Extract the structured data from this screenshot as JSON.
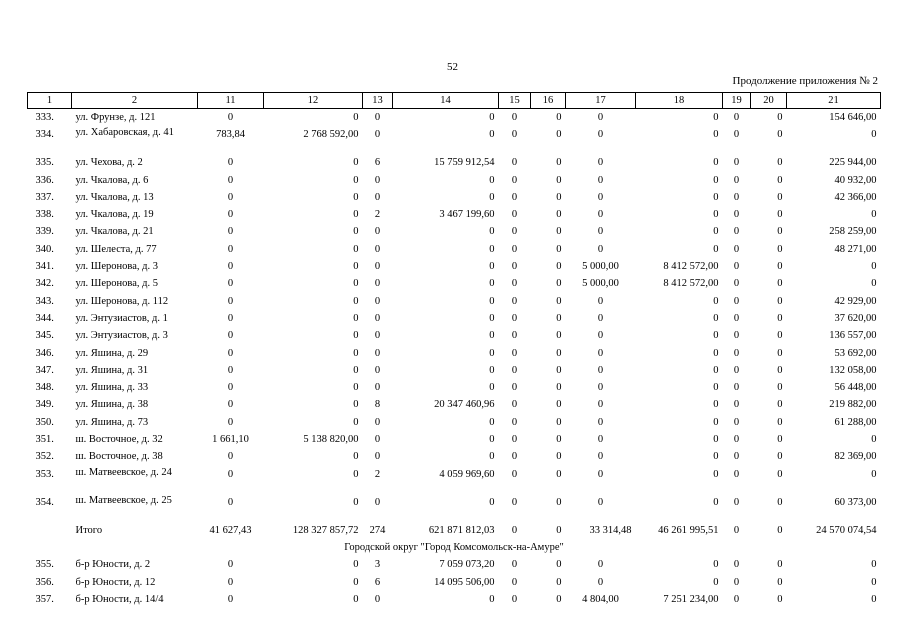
{
  "page_number": "52",
  "caption": "Продолжение приложения № 2",
  "headers": [
    "1",
    "2",
    "11",
    "12",
    "13",
    "14",
    "15",
    "16",
    "17",
    "18",
    "19",
    "20",
    "21"
  ],
  "rows_top": [
    {
      "num": "333.",
      "addr": "ул. Фрунзе, д. 121",
      "c11": "0",
      "c12": "0",
      "c13": "0",
      "c14": "0",
      "c15": "0",
      "c16": "0",
      "c17": "0",
      "c18": "0",
      "c19": "0",
      "c20": "0",
      "c21": "154 646,00"
    },
    {
      "num": "334.",
      "addr": "ул. Хабаровская, д. 41",
      "c11": "783,84",
      "c12": "2 768 592,00",
      "c13": "0",
      "c14": "0",
      "c15": "0",
      "c16": "0",
      "c17": "0",
      "c18": "0",
      "c19": "0",
      "c20": "0",
      "c21": "0",
      "tall": true
    },
    {
      "num": "335.",
      "addr": "ул. Чехова, д. 2",
      "c11": "0",
      "c12": "0",
      "c13": "6",
      "c14": "15 759 912,54",
      "c15": "0",
      "c16": "0",
      "c17": "0",
      "c18": "0",
      "c19": "0",
      "c20": "0",
      "c21": "225 944,00"
    },
    {
      "num": "336.",
      "addr": "ул. Чкалова, д. 6",
      "c11": "0",
      "c12": "0",
      "c13": "0",
      "c14": "0",
      "c15": "0",
      "c16": "0",
      "c17": "0",
      "c18": "0",
      "c19": "0",
      "c20": "0",
      "c21": "40 932,00"
    },
    {
      "num": "337.",
      "addr": "ул. Чкалова, д. 13",
      "c11": "0",
      "c12": "0",
      "c13": "0",
      "c14": "0",
      "c15": "0",
      "c16": "0",
      "c17": "0",
      "c18": "0",
      "c19": "0",
      "c20": "0",
      "c21": "42 366,00"
    },
    {
      "num": "338.",
      "addr": "ул. Чкалова, д. 19",
      "c11": "0",
      "c12": "0",
      "c13": "2",
      "c14": "3 467 199,60",
      "c15": "0",
      "c16": "0",
      "c17": "0",
      "c18": "0",
      "c19": "0",
      "c20": "0",
      "c21": "0"
    },
    {
      "num": "339.",
      "addr": "ул. Чкалова, д. 21",
      "c11": "0",
      "c12": "0",
      "c13": "0",
      "c14": "0",
      "c15": "0",
      "c16": "0",
      "c17": "0",
      "c18": "0",
      "c19": "0",
      "c20": "0",
      "c21": "258 259,00"
    },
    {
      "num": "340.",
      "addr": "ул. Шелеста, д. 77",
      "c11": "0",
      "c12": "0",
      "c13": "0",
      "c14": "0",
      "c15": "0",
      "c16": "0",
      "c17": "0",
      "c18": "0",
      "c19": "0",
      "c20": "0",
      "c21": "48 271,00"
    },
    {
      "num": "341.",
      "addr": "ул. Шеронова, д. 3",
      "c11": "0",
      "c12": "0",
      "c13": "0",
      "c14": "0",
      "c15": "0",
      "c16": "0",
      "c17": "5 000,00",
      "c18": "8 412 572,00",
      "c19": "0",
      "c20": "0",
      "c21": "0"
    },
    {
      "num": "342.",
      "addr": "ул. Шеронова, д. 5",
      "c11": "0",
      "c12": "0",
      "c13": "0",
      "c14": "0",
      "c15": "0",
      "c16": "0",
      "c17": "5 000,00",
      "c18": "8 412 572,00",
      "c19": "0",
      "c20": "0",
      "c21": "0"
    },
    {
      "num": "343.",
      "addr": "ул. Шеронова, д. 112",
      "c11": "0",
      "c12": "0",
      "c13": "0",
      "c14": "0",
      "c15": "0",
      "c16": "0",
      "c17": "0",
      "c18": "0",
      "c19": "0",
      "c20": "0",
      "c21": "42 929,00"
    },
    {
      "num": "344.",
      "addr": "ул. Энтузиастов, д. 1",
      "c11": "0",
      "c12": "0",
      "c13": "0",
      "c14": "0",
      "c15": "0",
      "c16": "0",
      "c17": "0",
      "c18": "0",
      "c19": "0",
      "c20": "0",
      "c21": "37 620,00"
    },
    {
      "num": "345.",
      "addr": "ул. Энтузиастов, д. 3",
      "c11": "0",
      "c12": "0",
      "c13": "0",
      "c14": "0",
      "c15": "0",
      "c16": "0",
      "c17": "0",
      "c18": "0",
      "c19": "0",
      "c20": "0",
      "c21": "136 557,00"
    },
    {
      "num": "346.",
      "addr": "ул. Яшина, д. 29",
      "c11": "0",
      "c12": "0",
      "c13": "0",
      "c14": "0",
      "c15": "0",
      "c16": "0",
      "c17": "0",
      "c18": "0",
      "c19": "0",
      "c20": "0",
      "c21": "53 692,00"
    },
    {
      "num": "347.",
      "addr": "ул. Яшина, д. 31",
      "c11": "0",
      "c12": "0",
      "c13": "0",
      "c14": "0",
      "c15": "0",
      "c16": "0",
      "c17": "0",
      "c18": "0",
      "c19": "0",
      "c20": "0",
      "c21": "132 058,00"
    },
    {
      "num": "348.",
      "addr": "ул. Яшина, д. 33",
      "c11": "0",
      "c12": "0",
      "c13": "0",
      "c14": "0",
      "c15": "0",
      "c16": "0",
      "c17": "0",
      "c18": "0",
      "c19": "0",
      "c20": "0",
      "c21": "56 448,00"
    },
    {
      "num": "349.",
      "addr": "ул. Яшина, д. 38",
      "c11": "0",
      "c12": "0",
      "c13": "8",
      "c14": "20 347 460,96",
      "c15": "0",
      "c16": "0",
      "c17": "0",
      "c18": "0",
      "c19": "0",
      "c20": "0",
      "c21": "219 882,00"
    },
    {
      "num": "350.",
      "addr": "ул. Яшина, д. 73",
      "c11": "0",
      "c12": "0",
      "c13": "0",
      "c14": "0",
      "c15": "0",
      "c16": "0",
      "c17": "0",
      "c18": "0",
      "c19": "0",
      "c20": "0",
      "c21": "61 288,00"
    },
    {
      "num": "351.",
      "addr": "ш. Восточное, д. 32",
      "c11": "1 661,10",
      "c12": "5 138 820,00",
      "c13": "0",
      "c14": "0",
      "c15": "0",
      "c16": "0",
      "c17": "0",
      "c18": "0",
      "c19": "0",
      "c20": "0",
      "c21": "0"
    },
    {
      "num": "352.",
      "addr": "ш. Восточное, д. 38",
      "c11": "0",
      "c12": "0",
      "c13": "0",
      "c14": "0",
      "c15": "0",
      "c16": "0",
      "c17": "0",
      "c18": "0",
      "c19": "0",
      "c20": "0",
      "c21": "82 369,00"
    },
    {
      "num": "353.",
      "addr": "ш. Матвеевское, д. 24",
      "c11": "0",
      "c12": "0",
      "c13": "2",
      "c14": "4 059 969,60",
      "c15": "0",
      "c16": "0",
      "c17": "0",
      "c18": "0",
      "c19": "0",
      "c20": "0",
      "c21": "0",
      "tall": true
    },
    {
      "num": "354.",
      "addr": "ш. Матвеевское, д. 25",
      "c11": "0",
      "c12": "0",
      "c13": "0",
      "c14": "0",
      "c15": "0",
      "c16": "0",
      "c17": "0",
      "c18": "0",
      "c19": "0",
      "c20": "0",
      "c21": "60 373,00",
      "tall": true
    }
  ],
  "total": {
    "label": "Итого",
    "c11": "41 627,43",
    "c12": "128 327 857,72",
    "c13": "274",
    "c14": "621 871 812,03",
    "c15": "0",
    "c16": "0",
    "c17": "33 314,48",
    "c18": "46 261 995,51",
    "c19": "0",
    "c20": "0",
    "c21": "24 570 074,54"
  },
  "section_title": "Городской округ \"Город Комсомольск-на-Амуре\"",
  "rows_bottom": [
    {
      "num": "355.",
      "addr": "б-р Юности, д. 2",
      "c11": "0",
      "c12": "0",
      "c13": "3",
      "c14": "7 059 073,20",
      "c15": "0",
      "c16": "0",
      "c17": "0",
      "c18": "0",
      "c19": "0",
      "c20": "0",
      "c21": "0"
    },
    {
      "num": "356.",
      "addr": "б-р Юности, д. 12",
      "c11": "0",
      "c12": "0",
      "c13": "6",
      "c14": "14 095 506,00",
      "c15": "0",
      "c16": "0",
      "c17": "0",
      "c18": "0",
      "c19": "0",
      "c20": "0",
      "c21": "0"
    },
    {
      "num": "357.",
      "addr": "б-р Юности, д. 14/4",
      "c11": "0",
      "c12": "0",
      "c13": "0",
      "c14": "0",
      "c15": "0",
      "c16": "0",
      "c17": "4 804,00",
      "c18": "7 251 234,00",
      "c19": "0",
      "c20": "0",
      "c21": "0"
    }
  ]
}
